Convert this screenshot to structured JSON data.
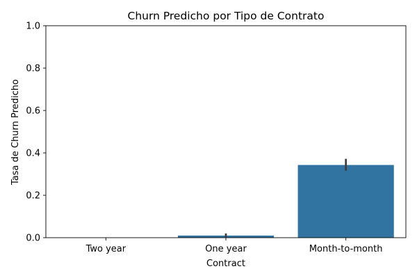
{
  "chart_data": {
    "type": "bar",
    "title": "Churn Predicho por Tipo de Contrato",
    "xlabel": "Contract",
    "ylabel": "Tasa de Churn Predicho",
    "categories": [
      "Two year",
      "One year",
      "Month-to-month"
    ],
    "values": [
      0.0,
      0.01,
      0.343
    ],
    "error_bars": [
      {
        "low": 0.0,
        "high": 0.0
      },
      {
        "low": 0.003,
        "high": 0.02
      },
      {
        "low": 0.316,
        "high": 0.372
      }
    ],
    "ylim": [
      0,
      1.0
    ],
    "yticks": [
      0.0,
      0.2,
      0.4,
      0.6,
      0.8,
      1.0
    ],
    "ytick_labels": [
      "0.0",
      "0.2",
      "0.4",
      "0.6",
      "0.8",
      "1.0"
    ],
    "grid": false,
    "colors": {
      "bar": "#3274a1",
      "error_bar": "#3d3d3d",
      "axis": "#000000"
    }
  }
}
